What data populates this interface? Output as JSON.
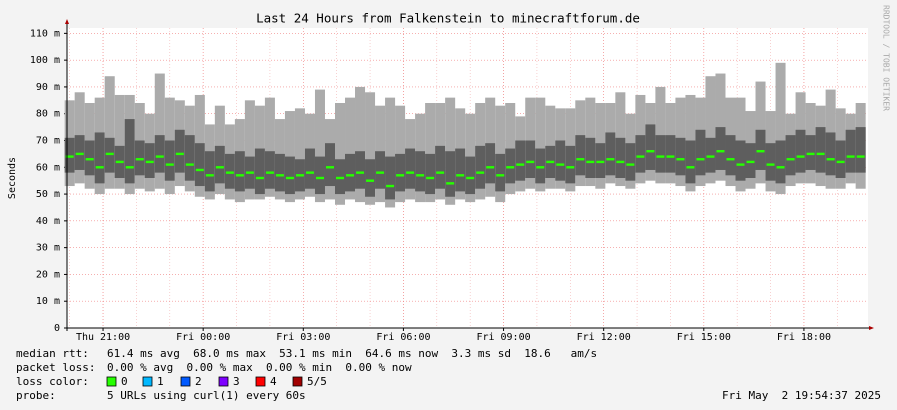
{
  "chart_data": {
    "type": "smoke",
    "title": "Last 24 Hours from Falkenstein to minecraftforum.de",
    "y_label": "Seconds",
    "side_label": "RRDTOOL / TOBI OETIKER",
    "xlim": [
      19.92,
      43.92
    ],
    "xticks": [
      {
        "value": 21,
        "label": "Thu 21:00"
      },
      {
        "value": 24,
        "label": "Fri 00:00"
      },
      {
        "value": 27,
        "label": "Fri 03:00"
      },
      {
        "value": 30,
        "label": "Fri 06:00"
      },
      {
        "value": 33,
        "label": "Fri 09:00"
      },
      {
        "value": 36,
        "label": "Fri 12:00"
      },
      {
        "value": 39,
        "label": "Fri 15:00"
      },
      {
        "value": 42,
        "label": "Fri 18:00"
      }
    ],
    "xminorticks": [
      20,
      21,
      22,
      23,
      24,
      25,
      26,
      27,
      28,
      29,
      30,
      31,
      32,
      33,
      34,
      35,
      36,
      37,
      38,
      39,
      40,
      41,
      42,
      43
    ],
    "ylim": [
      0,
      112
    ],
    "yticks": [
      0,
      {
        "value": 10,
        "label": "10 m"
      },
      {
        "value": 20,
        "label": "20 m"
      },
      {
        "value": 30,
        "label": "30 m"
      },
      {
        "value": 40,
        "label": "40 m"
      },
      {
        "value": 50,
        "label": "50 m"
      },
      {
        "value": 60,
        "label": "60 m"
      },
      {
        "value": 70,
        "label": "70 m"
      },
      {
        "value": 80,
        "label": "80 m"
      },
      {
        "value": 90,
        "label": "90 m"
      },
      {
        "value": 100,
        "label": "100 m"
      },
      {
        "value": 110,
        "label": "110 m"
      }
    ],
    "grid": true,
    "range_color": "#ababab",
    "spread_color": "#5e5e5e",
    "median_color": "#26ff00",
    "x": [
      20.0,
      20.3,
      20.6,
      20.9,
      21.2,
      21.5,
      21.8,
      22.1,
      22.4,
      22.7,
      23.0,
      23.3,
      23.6,
      23.9,
      24.2,
      24.5,
      24.8,
      25.1,
      25.4,
      25.7,
      26.0,
      26.3,
      26.6,
      26.9,
      27.2,
      27.5,
      27.8,
      28.1,
      28.4,
      28.7,
      29.0,
      29.3,
      29.6,
      29.9,
      30.2,
      30.5,
      30.8,
      31.1,
      31.4,
      31.7,
      32.0,
      32.3,
      32.6,
      32.9,
      33.2,
      33.5,
      33.8,
      34.1,
      34.4,
      34.7,
      35.0,
      35.3,
      35.6,
      35.9,
      36.2,
      36.5,
      36.8,
      37.1,
      37.4,
      37.7,
      38.0,
      38.3,
      38.6,
      38.9,
      39.2,
      39.5,
      39.8,
      40.1,
      40.4,
      40.7,
      41.0,
      41.3,
      41.6,
      41.9,
      42.2,
      42.5,
      42.8,
      43.1,
      43.4,
      43.7
    ],
    "median": [
      64,
      65,
      63,
      60,
      65,
      62,
      60,
      63,
      62,
      64,
      61,
      65,
      61,
      59,
      57,
      60,
      58,
      57,
      58,
      56,
      58,
      57,
      56,
      57,
      58,
      56,
      60,
      56,
      57,
      58,
      55,
      58,
      53,
      57,
      58,
      57,
      56,
      58,
      54,
      57,
      56,
      58,
      60,
      57,
      60,
      61,
      62,
      60,
      62,
      61,
      60,
      63,
      62,
      62,
      63,
      62,
      61,
      64,
      66,
      64,
      64,
      63,
      60,
      63,
      64,
      66,
      63,
      61,
      62,
      66,
      61,
      60,
      63,
      64,
      65,
      65,
      63,
      62,
      64,
      64
    ],
    "lower": [
      58,
      59,
      57,
      54,
      58,
      56,
      54,
      57,
      56,
      58,
      55,
      58,
      55,
      53,
      51,
      54,
      52,
      51,
      52,
      50,
      52,
      51,
      50,
      51,
      52,
      50,
      53,
      50,
      51,
      52,
      49,
      52,
      48,
      51,
      52,
      51,
      50,
      52,
      49,
      51,
      50,
      52,
      54,
      51,
      54,
      55,
      56,
      54,
      56,
      55,
      54,
      57,
      56,
      56,
      57,
      56,
      55,
      58,
      59,
      58,
      58,
      57,
      54,
      57,
      58,
      59,
      57,
      55,
      56,
      59,
      55,
      54,
      57,
      58,
      59,
      58,
      57,
      56,
      58,
      58
    ],
    "upper": [
      71,
      72,
      70,
      73,
      71,
      68,
      78,
      70,
      69,
      72,
      70,
      74,
      72,
      69,
      66,
      68,
      65,
      66,
      64,
      67,
      66,
      65,
      64,
      63,
      67,
      64,
      69,
      63,
      65,
      66,
      63,
      66,
      64,
      65,
      67,
      66,
      65,
      68,
      66,
      67,
      64,
      68,
      69,
      65,
      67,
      70,
      70,
      67,
      68,
      70,
      68,
      72,
      71,
      69,
      73,
      71,
      69,
      72,
      76,
      72,
      72,
      71,
      70,
      74,
      71,
      75,
      72,
      70,
      69,
      74,
      69,
      70,
      72,
      74,
      72,
      75,
      73,
      70,
      74,
      75
    ],
    "min": [
      53,
      54,
      52,
      50,
      52,
      52,
      50,
      52,
      51,
      52,
      50,
      53,
      51,
      49,
      48,
      50,
      48,
      47,
      48,
      48,
      49,
      48,
      47,
      48,
      49,
      47,
      48,
      46,
      48,
      47,
      46,
      47,
      45,
      47,
      48,
      47,
      47,
      48,
      46,
      48,
      47,
      48,
      49,
      47,
      50,
      51,
      52,
      51,
      52,
      52,
      51,
      53,
      53,
      52,
      54,
      53,
      52,
      54,
      55,
      54,
      54,
      53,
      51,
      53,
      54,
      55,
      53,
      51,
      52,
      54,
      51,
      50,
      53,
      54,
      54,
      53,
      52,
      52,
      54,
      52
    ],
    "max": [
      85,
      88,
      84,
      86,
      94,
      87,
      87,
      84,
      80,
      95,
      86,
      85,
      83,
      87,
      76,
      83,
      76,
      78,
      85,
      83,
      86,
      78,
      81,
      82,
      80,
      89,
      78,
      84,
      86,
      90,
      88,
      83,
      86,
      83,
      78,
      80,
      84,
      84,
      86,
      82,
      80,
      84,
      86,
      83,
      84,
      79,
      86,
      86,
      83,
      82,
      82,
      85,
      86,
      84,
      84,
      88,
      80,
      87,
      84,
      90,
      84,
      86,
      87,
      86,
      94,
      95,
      86,
      86,
      81,
      92,
      81,
      99,
      80,
      88,
      84,
      83,
      89,
      82,
      80,
      84
    ],
    "stats": [
      {
        "label": "median rtt:",
        "text": "61.4 ms avg  68.0 ms max  53.1 ms min  64.6 ms now  3.3 ms sd  18.6   am/s"
      },
      {
        "label": "packet loss:",
        "text": "0.00 % avg  0.00 % max  0.00 % min  0.00 % now"
      }
    ],
    "loss_label": "loss color:",
    "loss_colors": [
      {
        "label": "0",
        "color": "#26ff00"
      },
      {
        "label": "1",
        "color": "#00b8ff"
      },
      {
        "label": "2",
        "color": "#0059ff"
      },
      {
        "label": "3",
        "color": "#7e00ff"
      },
      {
        "label": "4",
        "color": "#ff0000"
      },
      {
        "label": "5/5",
        "color": "#a10000"
      }
    ],
    "probe_label": "probe:",
    "probe_text": "5 URLs using curl(1) every 60s",
    "timestamp": "Fri May  2 19:54:37 2025"
  }
}
